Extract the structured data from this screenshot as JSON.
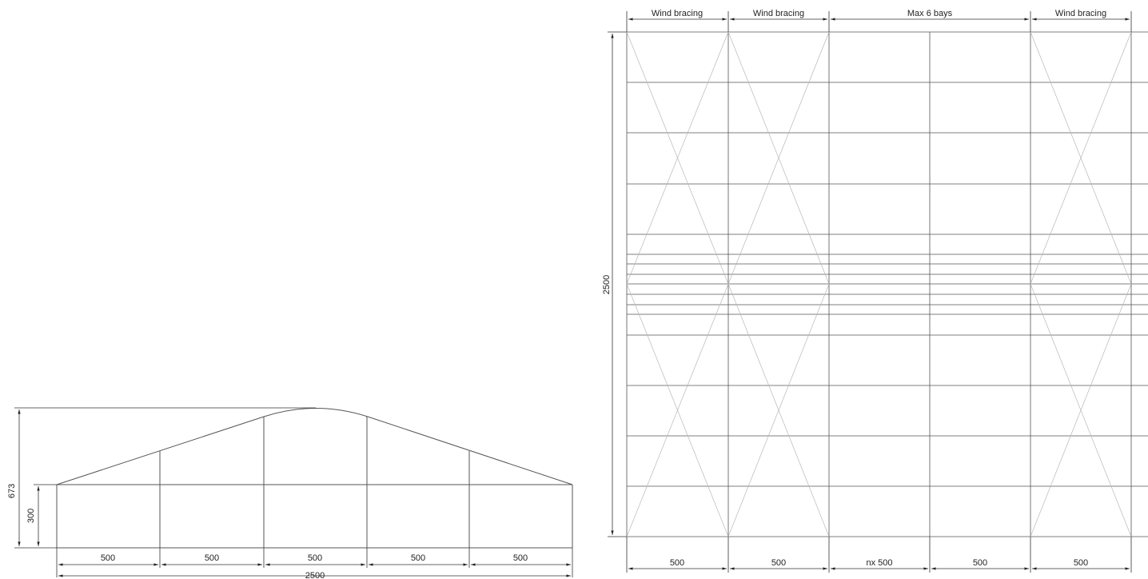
{
  "elevation": {
    "height_total_label": "673",
    "height_side_label": "300",
    "bay_labels": [
      "500",
      "500",
      "500",
      "500",
      "500"
    ],
    "total_width_label": "2500"
  },
  "plan": {
    "header_labels": [
      "Wind bracing",
      "Wind bracing",
      "Max 6 bays",
      "Wind bracing"
    ],
    "depth_label": "2500",
    "bottom_labels": [
      "500",
      "500",
      "nx 500",
      "500",
      "500"
    ]
  }
}
